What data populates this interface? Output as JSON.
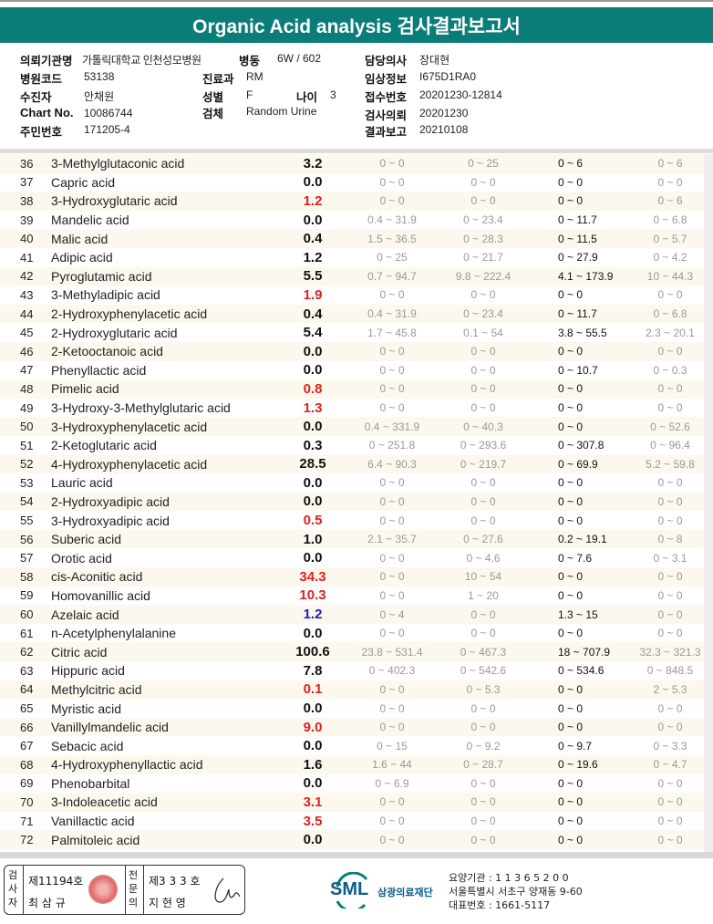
{
  "title": "Organic Acid analysis 검사결과보고서",
  "info": {
    "institution_label": "의뢰기관명",
    "institution": "가톨릭대학교 인천성모병원",
    "ward_label": "병동",
    "ward": "6W / 602",
    "doctor_label": "담당의사",
    "doctor": "장대현",
    "hospital_code_label": "병원코드",
    "hospital_code": "53138",
    "dept_label": "진료과",
    "dept": "RM",
    "clinical_label": "임상정보",
    "clinical": "I675D1RA0",
    "patient_label": "수진자",
    "patient": "안채원",
    "sex_label": "성별",
    "sex": "F",
    "age_label": "나이",
    "age": "3",
    "receipt_label": "접수번호",
    "receipt": "20201230-12814",
    "chart_label": "Chart No.",
    "chart": "10086744",
    "specimen_label": "검체",
    "specimen": "Random Urine",
    "request_label": "검사의뢰",
    "request": "20201230",
    "id_label": "주민번호",
    "id": "171205-4",
    "report_label": "결과보고",
    "report": "20210108"
  },
  "colors": {
    "header": "#0b7d78",
    "high": "#e02020",
    "low": "#1a1acc",
    "normal": "#111111"
  },
  "rows": [
    {
      "n": "36",
      "name": "3-Methylglutaconic acid",
      "v": "3.2",
      "s": "normal",
      "r1": "0 ~ 0",
      "r2": "0 ~ 25",
      "r3": "0 ~ 6",
      "r4": "0 ~ 6"
    },
    {
      "n": "37",
      "name": "Capric acid",
      "v": "0.0",
      "s": "normal",
      "r1": "0 ~ 0",
      "r2": "0 ~ 0",
      "r3": "0 ~ 0",
      "r4": "0 ~ 0"
    },
    {
      "n": "38",
      "name": "3-Hydroxyglutaric acid",
      "v": "1.2",
      "s": "high",
      "r1": "0 ~ 0",
      "r2": "0 ~ 0",
      "r3": "0 ~ 0",
      "r4": "0 ~ 6"
    },
    {
      "n": "39",
      "name": "Mandelic acid",
      "v": "0.0",
      "s": "normal",
      "r1": "0.4 ~ 31.9",
      "r2": "0 ~ 23.4",
      "r3": "0 ~ 11.7",
      "r4": "0 ~ 6.8"
    },
    {
      "n": "40",
      "name": "Malic acid",
      "v": "0.4",
      "s": "normal",
      "r1": "1.5 ~ 36.5",
      "r2": "0 ~ 28.3",
      "r3": "0 ~ 11.5",
      "r4": "0 ~ 5.7"
    },
    {
      "n": "41",
      "name": "Adipic acid",
      "v": "1.2",
      "s": "normal",
      "r1": "0 ~ 25",
      "r2": "0 ~ 21.7",
      "r3": "0 ~ 27.9",
      "r4": "0 ~ 4.2"
    },
    {
      "n": "42",
      "name": "Pyroglutamic acid",
      "v": "5.5",
      "s": "normal",
      "r1": "0.7 ~ 94.7",
      "r2": "9.8 ~ 222.4",
      "r3": "4.1 ~ 173.9",
      "r4": "10 ~ 44.3"
    },
    {
      "n": "43",
      "name": "3-Methyladipic acid",
      "v": "1.9",
      "s": "high",
      "r1": "0 ~ 0",
      "r2": "0 ~ 0",
      "r3": "0 ~ 0",
      "r4": "0 ~ 0"
    },
    {
      "n": "44",
      "name": "2-Hydroxyphenylacetic acid",
      "v": "0.4",
      "s": "normal",
      "r1": "0.4 ~ 31.9",
      "r2": "0 ~ 23.4",
      "r3": "0 ~ 11.7",
      "r4": "0 ~ 6.8"
    },
    {
      "n": "45",
      "name": "2-Hydroxyglutaric acid",
      "v": "5.4",
      "s": "normal",
      "r1": "1.7 ~ 45.8",
      "r2": "0.1 ~ 54",
      "r3": "3.8 ~ 55.5",
      "r4": "2.3 ~ 20.1"
    },
    {
      "n": "46",
      "name": "2-Ketooctanoic acid",
      "v": "0.0",
      "s": "normal",
      "r1": "0 ~ 0",
      "r2": "0 ~ 0",
      "r3": "0 ~ 0",
      "r4": "0 ~ 0"
    },
    {
      "n": "47",
      "name": "Phenyllactic acid",
      "v": "0.0",
      "s": "normal",
      "r1": "0 ~ 0",
      "r2": "0 ~ 0",
      "r3": "0 ~ 10.7",
      "r4": "0 ~ 0.3"
    },
    {
      "n": "48",
      "name": "Pimelic acid",
      "v": "0.8",
      "s": "high",
      "r1": "0 ~ 0",
      "r2": "0 ~ 0",
      "r3": "0 ~ 0",
      "r4": "0 ~ 0"
    },
    {
      "n": "49",
      "name": "3-Hydroxy-3-Methylglutaric acid",
      "v": "1.3",
      "s": "high",
      "r1": "0 ~ 0",
      "r2": "0 ~ 0",
      "r3": "0 ~ 0",
      "r4": "0 ~ 0"
    },
    {
      "n": "50",
      "name": "3-Hydroxyphenylacetic acid",
      "v": "0.0",
      "s": "normal",
      "r1": "0.4 ~ 331.9",
      "r2": "0 ~ 40.3",
      "r3": "0 ~ 0",
      "r4": "0 ~ 52.6"
    },
    {
      "n": "51",
      "name": "2-Ketoglutaric acid",
      "v": "0.3",
      "s": "normal",
      "r1": "0 ~ 251.8",
      "r2": "0 ~ 293.6",
      "r3": "0 ~ 307.8",
      "r4": "0 ~ 96.4"
    },
    {
      "n": "52",
      "name": "4-Hydroxyphenylacetic acid",
      "v": "28.5",
      "s": "normal",
      "r1": "6.4 ~ 90.3",
      "r2": "0 ~ 219.7",
      "r3": "0 ~ 69.9",
      "r4": "5.2 ~ 59.8"
    },
    {
      "n": "53",
      "name": "Lauric acid",
      "v": "0.0",
      "s": "normal",
      "r1": "0 ~ 0",
      "r2": "0 ~ 0",
      "r3": "0 ~ 0",
      "r4": "0 ~ 0"
    },
    {
      "n": "54",
      "name": "2-Hydroxyadipic acid",
      "v": "0.0",
      "s": "normal",
      "r1": "0 ~ 0",
      "r2": "0 ~ 0",
      "r3": "0 ~ 0",
      "r4": "0 ~ 0"
    },
    {
      "n": "55",
      "name": "3-Hydroxyadipic acid",
      "v": "0.5",
      "s": "high",
      "r1": "0 ~ 0",
      "r2": "0 ~ 0",
      "r3": "0 ~ 0",
      "r4": "0 ~ 0"
    },
    {
      "n": "56",
      "name": "Suberic acid",
      "v": "1.0",
      "s": "normal",
      "r1": "2.1 ~ 35.7",
      "r2": "0 ~ 27.6",
      "r3": "0.2 ~ 19.1",
      "r4": "0 ~ 8"
    },
    {
      "n": "57",
      "name": "Orotic acid",
      "v": "0.0",
      "s": "normal",
      "r1": "0 ~ 0",
      "r2": "0 ~ 4.6",
      "r3": "0 ~ 7.6",
      "r4": "0 ~ 3.1"
    },
    {
      "n": "58",
      "name": "cis-Aconitic acid",
      "v": "34.3",
      "s": "high",
      "r1": "0 ~ 0",
      "r2": "10 ~ 54",
      "r3": "0 ~ 0",
      "r4": "0 ~ 0"
    },
    {
      "n": "59",
      "name": "Homovanillic acid",
      "v": "10.3",
      "s": "high",
      "r1": "0 ~ 0",
      "r2": "1 ~ 20",
      "r3": "0 ~ 0",
      "r4": "0 ~ 0"
    },
    {
      "n": "60",
      "name": "Azelaic acid",
      "v": "1.2",
      "s": "low",
      "r1": "0 ~ 4",
      "r2": "0 ~ 0",
      "r3": "1.3 ~ 15",
      "r4": "0 ~ 0"
    },
    {
      "n": "61",
      "name": "n-Acetylphenylalanine",
      "v": "0.0",
      "s": "normal",
      "r1": "0 ~ 0",
      "r2": "0 ~ 0",
      "r3": "0 ~ 0",
      "r4": "0 ~ 0"
    },
    {
      "n": "62",
      "name": "Citric acid",
      "v": "100.6",
      "s": "normal",
      "r1": "23.8 ~ 531.4",
      "r2": "0 ~ 467.3",
      "r3": "18 ~ 707.9",
      "r4": "32.3 ~ 321.3"
    },
    {
      "n": "63",
      "name": "Hippuric acid",
      "v": "7.8",
      "s": "normal",
      "r1": "0 ~ 402.3",
      "r2": "0 ~ 542.6",
      "r3": "0 ~ 534.6",
      "r4": "0 ~ 848.5"
    },
    {
      "n": "64",
      "name": "Methylcitric acid",
      "v": "0.1",
      "s": "high",
      "r1": "0 ~ 0",
      "r2": "0 ~ 5.3",
      "r3": "0 ~ 0",
      "r4": "2 ~ 5.3"
    },
    {
      "n": "65",
      "name": "Myristic acid",
      "v": "0.0",
      "s": "normal",
      "r1": "0 ~ 0",
      "r2": "0 ~ 0",
      "r3": "0 ~ 0",
      "r4": "0 ~ 0"
    },
    {
      "n": "66",
      "name": "Vanillylmandelic acid",
      "v": "9.0",
      "s": "high",
      "r1": "0 ~ 0",
      "r2": "0 ~ 0",
      "r3": "0 ~ 0",
      "r4": "0 ~ 0"
    },
    {
      "n": "67",
      "name": "Sebacic acid",
      "v": "0.0",
      "s": "normal",
      "r1": "0 ~ 15",
      "r2": "0 ~ 9.2",
      "r3": "0 ~ 9.7",
      "r4": "0 ~ 3.3"
    },
    {
      "n": "68",
      "name": "4-Hydroxyphenyllactic acid",
      "v": "1.6",
      "s": "normal",
      "r1": "1.6 ~ 44",
      "r2": "0 ~ 28.7",
      "r3": "0 ~ 19.6",
      "r4": "0 ~ 4.7"
    },
    {
      "n": "69",
      "name": "Phenobarbital",
      "v": "0.0",
      "s": "normal",
      "r1": "0 ~ 6.9",
      "r2": "0 ~ 0",
      "r3": "0 ~ 0",
      "r4": "0 ~ 0"
    },
    {
      "n": "70",
      "name": "3-Indoleacetic acid",
      "v": "3.1",
      "s": "high",
      "r1": "0 ~ 0",
      "r2": "0 ~ 0",
      "r3": "0 ~ 0",
      "r4": "0 ~ 0"
    },
    {
      "n": "71",
      "name": "Vanillactic acid",
      "v": "3.5",
      "s": "high",
      "r1": "0 ~ 0",
      "r2": "0 ~ 0",
      "r3": "0 ~ 0",
      "r4": "0 ~ 0"
    },
    {
      "n": "72",
      "name": "Palmitoleic acid",
      "v": "0.0",
      "s": "normal",
      "r1": "0 ~ 0",
      "r2": "0 ~ 0",
      "r3": "0 ~ 0",
      "r4": "0 ~ 0"
    }
  ],
  "footer": {
    "examiner_label": "검사자",
    "examiner_no": "제11194호",
    "examiner_name": "최 삼 규",
    "specialist_label": "전문의",
    "specialist_no": "제3 3 3 호",
    "specialist_name": "지 현 영",
    "logo": "SML",
    "org": "삼광의료재단",
    "code": "요양기관 : 1 1 3 6 5 2 0 0",
    "address": "서울특별시 서초구 양재동 9-60",
    "phone": "대표번호 : 1661-5117"
  }
}
